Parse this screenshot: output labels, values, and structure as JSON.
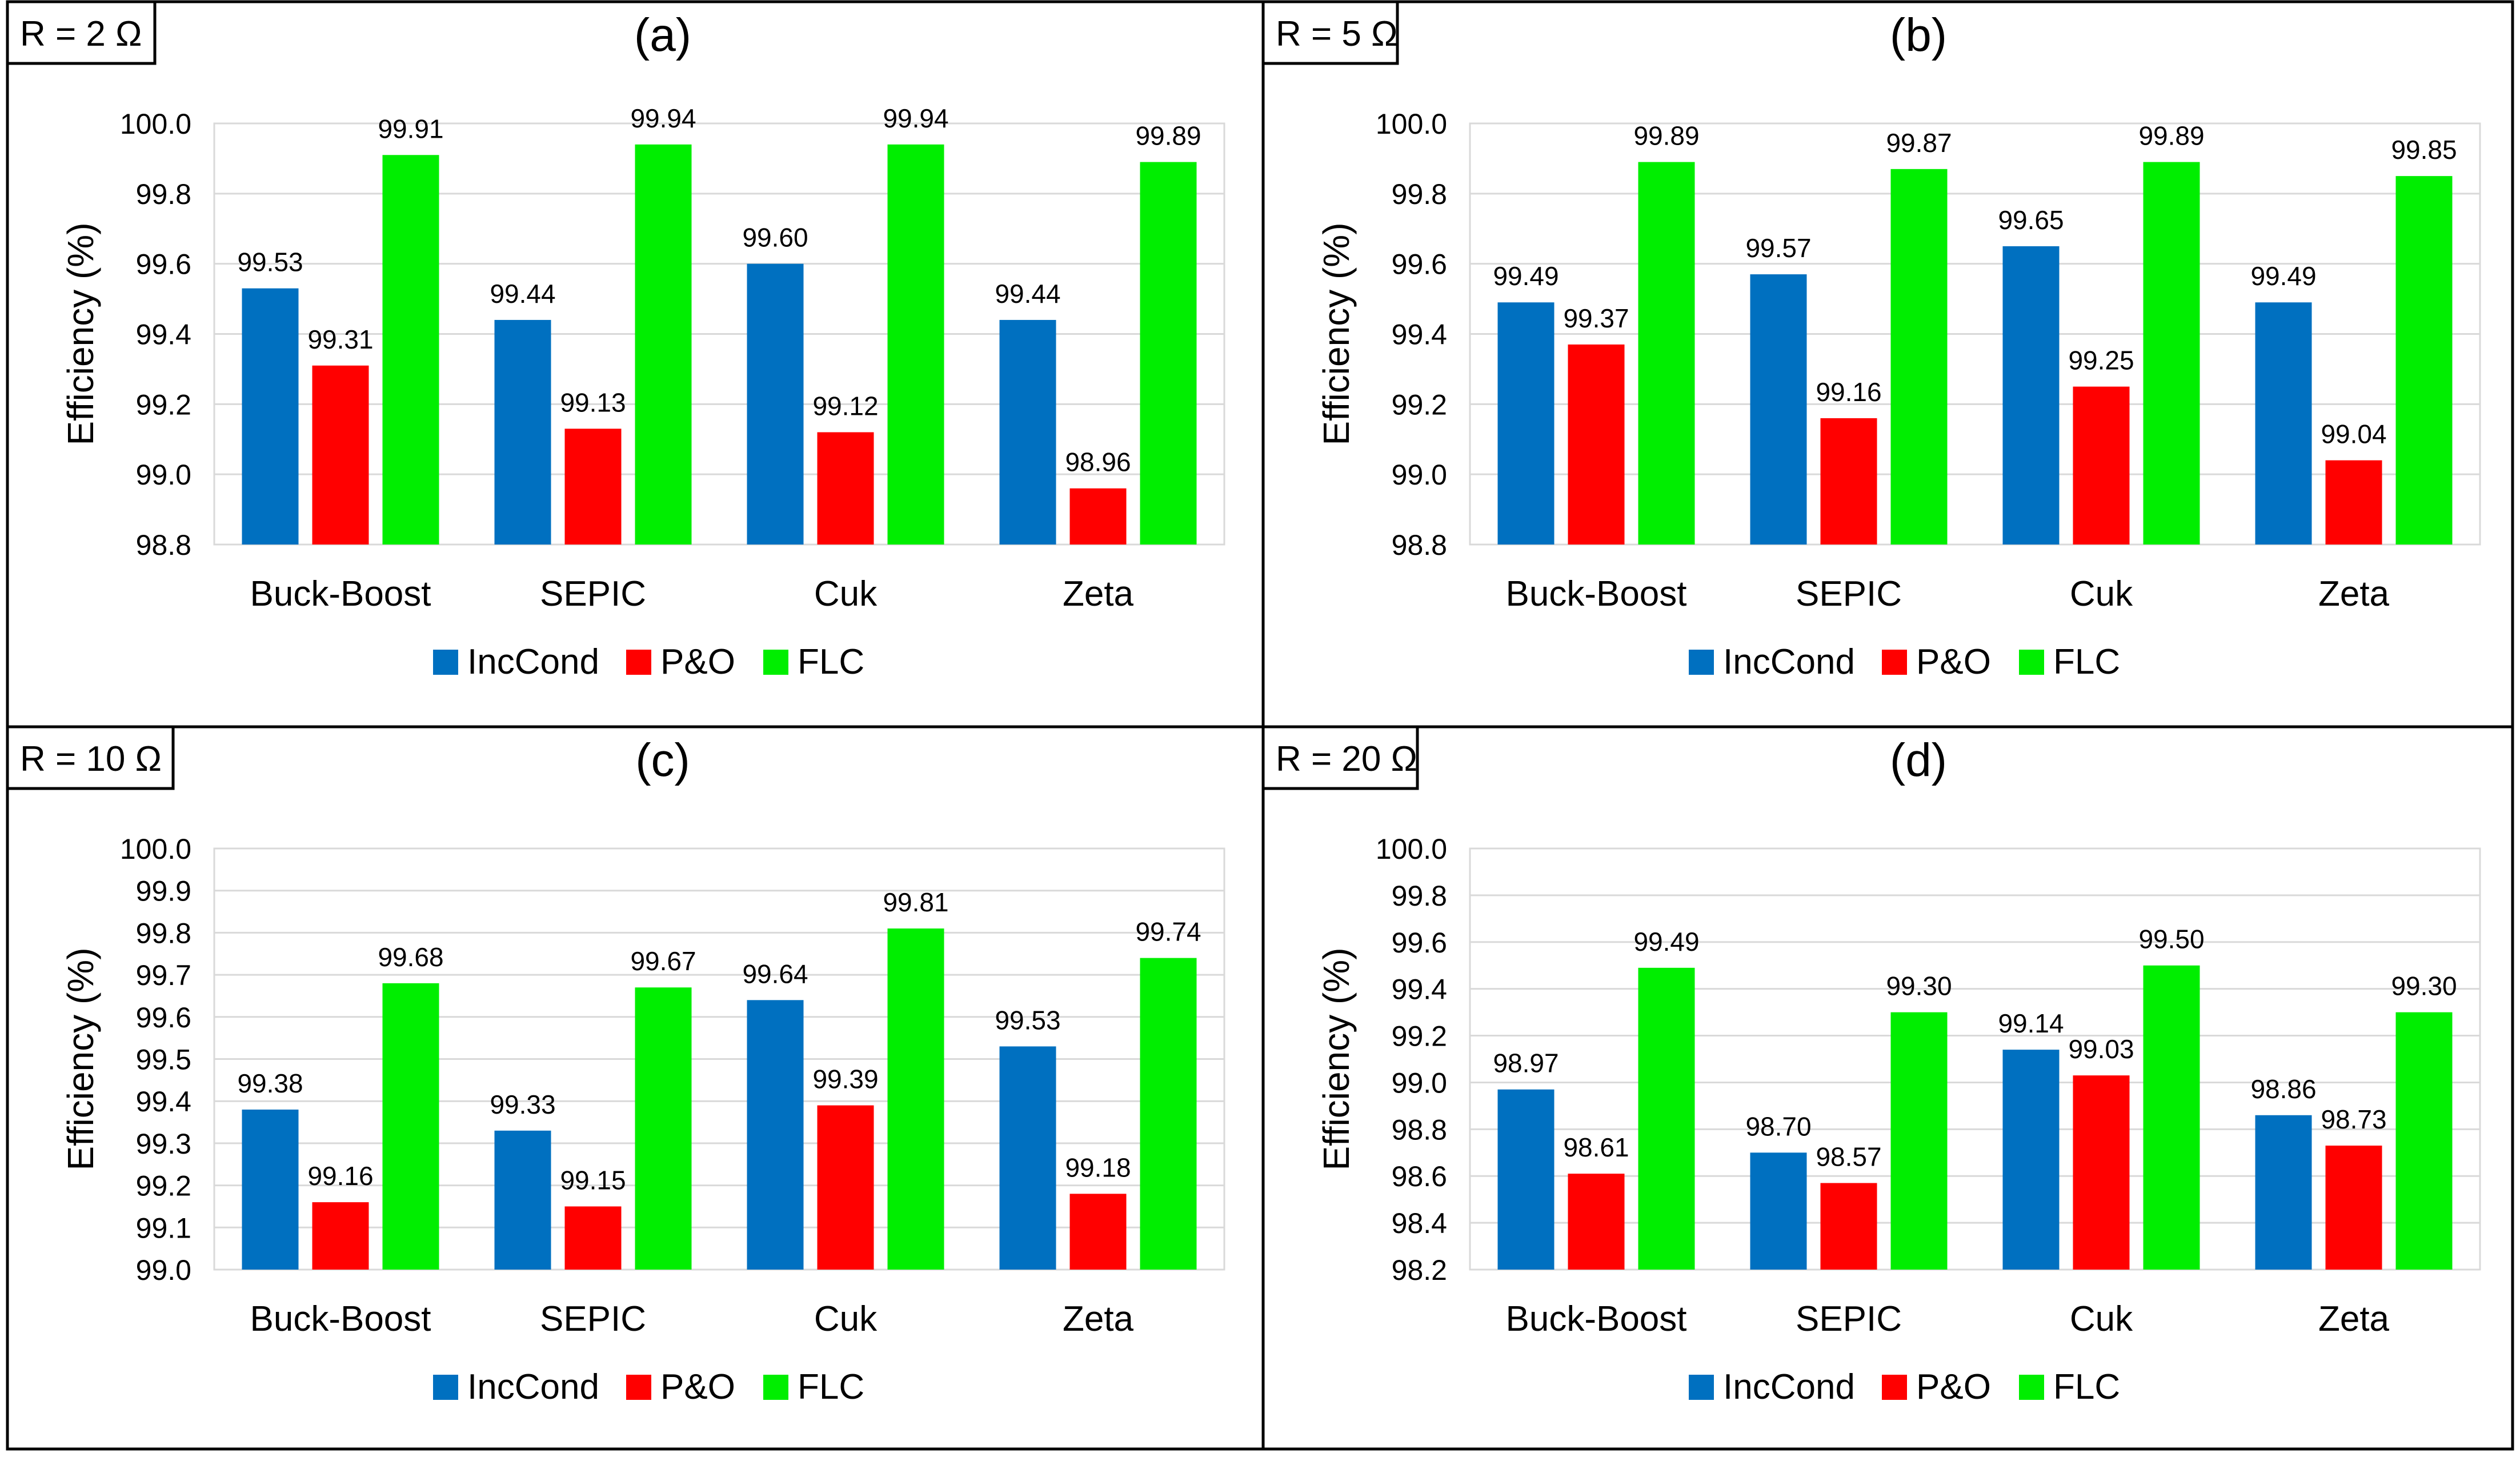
{
  "colors": {
    "IncCond": "#0070C0",
    "P&O": "#FF0000",
    "FLC": "#00EE00"
  },
  "chart_data": [
    {
      "type": "bar",
      "panel_label": "(a)",
      "resistance_label": "R = 2 Ω",
      "ylabel": "Efficiency (%)",
      "ylim": [
        98.8,
        100.0
      ],
      "ytick_step": 0.2,
      "yticks": [
        "98.8",
        "99.0",
        "99.2",
        "99.4",
        "99.6",
        "99.8",
        "100.0"
      ],
      "categories": [
        "Buck-Boost",
        "SEPIC",
        "Cuk",
        "Zeta"
      ],
      "series": [
        {
          "name": "IncCond",
          "values": [
            99.53,
            99.44,
            99.6,
            99.44
          ],
          "labels": [
            "99.53",
            "99.44",
            "99.60",
            "99.44"
          ]
        },
        {
          "name": "P&O",
          "values": [
            99.31,
            99.13,
            99.12,
            98.96
          ],
          "labels": [
            "99.31",
            "99.13",
            "99.12",
            "98.96"
          ]
        },
        {
          "name": "FLC",
          "values": [
            99.91,
            99.94,
            99.94,
            99.89
          ],
          "labels": [
            "99.91",
            "99.94",
            "99.94",
            "99.89"
          ]
        }
      ],
      "legend": [
        "IncCond",
        "P&O",
        "FLC"
      ],
      "grid": true
    },
    {
      "type": "bar",
      "panel_label": "(b)",
      "resistance_label": "R = 5 Ω",
      "ylabel": "Efficiency (%)",
      "ylim": [
        98.8,
        100.0
      ],
      "ytick_step": 0.2,
      "yticks": [
        "98.8",
        "99.0",
        "99.2",
        "99.4",
        "99.6",
        "99.8",
        "100.0"
      ],
      "categories": [
        "Buck-Boost",
        "SEPIC",
        "Cuk",
        "Zeta"
      ],
      "series": [
        {
          "name": "IncCond",
          "values": [
            99.49,
            99.57,
            99.65,
            99.49
          ],
          "labels": [
            "99.49",
            "99.57",
            "99.65",
            "99.49"
          ]
        },
        {
          "name": "P&O",
          "values": [
            99.37,
            99.16,
            99.25,
            99.04
          ],
          "labels": [
            "99.37",
            "99.16",
            "99.25",
            "99.04"
          ]
        },
        {
          "name": "FLC",
          "values": [
            99.89,
            99.87,
            99.89,
            99.85
          ],
          "labels": [
            "99.89",
            "99.87",
            "99.89",
            "99.85"
          ]
        }
      ],
      "legend": [
        "IncCond",
        "P&O",
        "FLC"
      ],
      "grid": true
    },
    {
      "type": "bar",
      "panel_label": "(c)",
      "resistance_label": "R = 10 Ω",
      "ylabel": "Efficiency (%)",
      "ylim": [
        99.0,
        100.0
      ],
      "ytick_step": 0.1,
      "yticks": [
        "99.0",
        "99.1",
        "99.2",
        "99.3",
        "99.4",
        "99.5",
        "99.6",
        "99.7",
        "99.8",
        "99.9",
        "100.0"
      ],
      "categories": [
        "Buck-Boost",
        "SEPIC",
        "Cuk",
        "Zeta"
      ],
      "series": [
        {
          "name": "IncCond",
          "values": [
            99.38,
            99.33,
            99.64,
            99.53
          ],
          "labels": [
            "99.38",
            "99.33",
            "99.64",
            "99.53"
          ]
        },
        {
          "name": "P&O",
          "values": [
            99.16,
            99.15,
            99.39,
            99.18
          ],
          "labels": [
            "99.16",
            "99.15",
            "99.39",
            "99.18"
          ]
        },
        {
          "name": "FLC",
          "values": [
            99.68,
            99.67,
            99.81,
            99.74
          ],
          "labels": [
            "99.68",
            "99.67",
            "99.81",
            "99.74"
          ]
        }
      ],
      "legend": [
        "IncCond",
        "P&O",
        "FLC"
      ],
      "grid": true
    },
    {
      "type": "bar",
      "panel_label": "(d)",
      "resistance_label": "R = 20 Ω",
      "ylabel": "Efficiency (%)",
      "ylim": [
        98.2,
        100.0
      ],
      "ytick_step": 0.2,
      "yticks": [
        "98.2",
        "98.4",
        "98.6",
        "98.8",
        "99.0",
        "99.2",
        "99.4",
        "99.6",
        "99.8",
        "100.0"
      ],
      "categories": [
        "Buck-Boost",
        "SEPIC",
        "Cuk",
        "Zeta"
      ],
      "series": [
        {
          "name": "IncCond",
          "values": [
            98.97,
            98.7,
            99.14,
            98.86
          ],
          "labels": [
            "98.97",
            "98.70",
            "99.14",
            "98.86"
          ]
        },
        {
          "name": "P&O",
          "values": [
            98.61,
            98.57,
            99.03,
            98.73
          ],
          "labels": [
            "98.61",
            "98.57",
            "99.03",
            "98.73"
          ]
        },
        {
          "name": "FLC",
          "values": [
            99.49,
            99.3,
            99.5,
            99.3
          ],
          "labels": [
            "99.49",
            "99.30",
            "99.50",
            "99.30"
          ]
        }
      ],
      "legend": [
        "IncCond",
        "P&O",
        "FLC"
      ],
      "grid": true
    }
  ]
}
